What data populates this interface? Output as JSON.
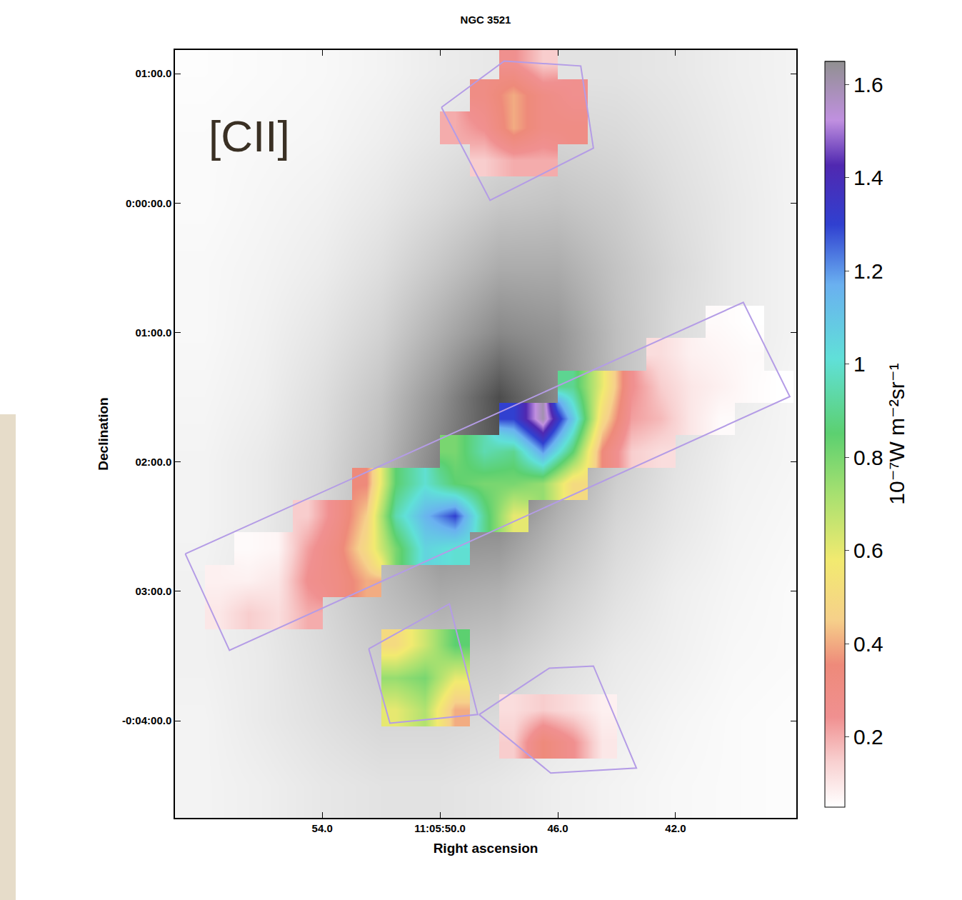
{
  "chart_data": {
    "type": "heatmap",
    "title": "NGC 3521",
    "x_label": "Right ascension",
    "y_label": "Declination",
    "xlim": [
      59.0,
      37.9
    ],
    "ylim": [
      -285,
      71
    ],
    "xticks": [
      {
        "value": 54,
        "label": "54.0"
      },
      {
        "value": 50,
        "label": "11:05:50.0"
      },
      {
        "value": 46,
        "label": "46.0"
      },
      {
        "value": 42,
        "label": "42.0"
      }
    ],
    "yticks": [
      {
        "value": 60,
        "label": "01:00.0"
      },
      {
        "value": 0,
        "label": "0:00:00.0"
      },
      {
        "value": -60,
        "label": "01:00.0"
      },
      {
        "value": -120,
        "label": "02:00.0"
      },
      {
        "value": -180,
        "label": "03:00.0"
      },
      {
        "value": -240,
        "label": "-0:04:00.0"
      }
    ],
    "grid": false,
    "annotations": [
      {
        "text": "[CII]"
      }
    ],
    "background": {
      "x": [
        58,
        56,
        54,
        52,
        50,
        48,
        46,
        44,
        42,
        40,
        38
      ],
      "y": [
        60,
        30,
        0,
        -30,
        -60,
        -90,
        -120,
        -150,
        -180,
        -210,
        -240,
        -270
      ],
      "zlim": [
        0,
        1
      ],
      "z": [
        [
          0.01,
          0.02,
          0.03,
          0.05,
          0.08,
          0.1,
          0.12,
          0.12,
          0.1,
          0.07,
          0.05
        ],
        [
          0.02,
          0.03,
          0.04,
          0.07,
          0.11,
          0.15,
          0.18,
          0.16,
          0.12,
          0.08,
          0.05
        ],
        [
          0.02,
          0.04,
          0.06,
          0.1,
          0.16,
          0.23,
          0.25,
          0.21,
          0.14,
          0.09,
          0.05
        ],
        [
          0.03,
          0.05,
          0.08,
          0.14,
          0.24,
          0.35,
          0.35,
          0.25,
          0.16,
          0.09,
          0.05
        ],
        [
          0.03,
          0.06,
          0.11,
          0.19,
          0.34,
          0.5,
          0.45,
          0.27,
          0.15,
          0.09,
          0.05
        ],
        [
          0.04,
          0.07,
          0.14,
          0.25,
          0.46,
          0.75,
          0.49,
          0.27,
          0.14,
          0.08,
          0.04
        ],
        [
          0.05,
          0.09,
          0.16,
          0.29,
          0.53,
          0.71,
          0.41,
          0.22,
          0.12,
          0.06,
          0.04
        ],
        [
          0.05,
          0.09,
          0.17,
          0.31,
          0.48,
          0.48,
          0.31,
          0.17,
          0.1,
          0.05,
          0.03
        ],
        [
          0.06,
          0.1,
          0.17,
          0.27,
          0.36,
          0.33,
          0.22,
          0.13,
          0.07,
          0.04,
          0.02
        ],
        [
          0.06,
          0.09,
          0.15,
          0.22,
          0.25,
          0.22,
          0.15,
          0.09,
          0.06,
          0.03,
          0.02
        ],
        [
          0.05,
          0.09,
          0.13,
          0.17,
          0.17,
          0.15,
          0.1,
          0.07,
          0.04,
          0.02,
          0.01
        ],
        [
          0.05,
          0.07,
          0.1,
          0.12,
          0.12,
          0.1,
          0.07,
          0.05,
          0.03,
          0.02,
          0.01
        ]
      ]
    },
    "cells": {
      "x": [
        58.5,
        57.5,
        56.5,
        55.5,
        54.5,
        53.5,
        52.5,
        51.5,
        50.5,
        49.5,
        48.5,
        47.5,
        46.5,
        45.5,
        44.5,
        43.5,
        42.5,
        41.5,
        40.5,
        39.5,
        38.5
      ],
      "y": [
        65,
        50,
        35,
        20,
        5,
        -10,
        -25,
        -40,
        -55,
        -70,
        -85,
        -100,
        -115,
        -130,
        -145,
        -160,
        -175,
        -190,
        -205,
        -220,
        -235,
        -250,
        -265,
        -280
      ],
      "z": [
        [
          null,
          null,
          null,
          null,
          null,
          null,
          null,
          null,
          null,
          null,
          null,
          0.25,
          0.15,
          null,
          null,
          null,
          null,
          null,
          null,
          null,
          null
        ],
        [
          null,
          null,
          null,
          null,
          null,
          null,
          null,
          null,
          null,
          null,
          0.3,
          0.4,
          0.3,
          0.25,
          null,
          null,
          null,
          null,
          null,
          null,
          null
        ],
        [
          null,
          null,
          null,
          null,
          null,
          null,
          null,
          null,
          null,
          0.2,
          0.25,
          0.4,
          0.3,
          0.3,
          null,
          null,
          null,
          null,
          null,
          null,
          null
        ],
        [
          null,
          null,
          null,
          null,
          null,
          null,
          null,
          null,
          null,
          null,
          0.15,
          0.2,
          0.2,
          null,
          null,
          null,
          null,
          null,
          null,
          null,
          null
        ],
        [
          null,
          null,
          null,
          null,
          null,
          null,
          null,
          null,
          null,
          null,
          null,
          null,
          null,
          null,
          null,
          null,
          null,
          null,
          null,
          null,
          null
        ],
        [
          null,
          null,
          null,
          null,
          null,
          null,
          null,
          null,
          null,
          null,
          null,
          null,
          null,
          null,
          null,
          null,
          null,
          null,
          null,
          null,
          null
        ],
        [
          null,
          null,
          null,
          null,
          null,
          null,
          null,
          null,
          null,
          null,
          null,
          null,
          null,
          null,
          null,
          null,
          null,
          null,
          null,
          null,
          null
        ],
        [
          null,
          null,
          null,
          null,
          null,
          null,
          null,
          null,
          null,
          null,
          null,
          null,
          null,
          null,
          null,
          null,
          null,
          null,
          null,
          null,
          null
        ],
        [
          null,
          null,
          null,
          null,
          null,
          null,
          null,
          null,
          null,
          null,
          null,
          null,
          null,
          null,
          null,
          null,
          null,
          null,
          0.06,
          0.05,
          null
        ],
        [
          null,
          null,
          null,
          null,
          null,
          null,
          null,
          null,
          null,
          null,
          null,
          null,
          null,
          null,
          null,
          null,
          0.12,
          0.08,
          0.07,
          0.06,
          null
        ],
        [
          null,
          null,
          null,
          null,
          null,
          null,
          null,
          null,
          null,
          null,
          null,
          null,
          null,
          0.9,
          0.6,
          0.25,
          0.15,
          0.1,
          0.08,
          0.06,
          0.05
        ],
        [
          null,
          null,
          null,
          null,
          null,
          null,
          null,
          null,
          null,
          null,
          null,
          1.3,
          1.6,
          1.1,
          0.5,
          0.22,
          0.18,
          0.1,
          0.06,
          null,
          null
        ],
        [
          null,
          null,
          null,
          null,
          null,
          null,
          null,
          null,
          null,
          0.8,
          0.95,
          0.9,
          1.2,
          0.85,
          0.35,
          0.15,
          0.12,
          null,
          null,
          null,
          null
        ],
        [
          null,
          null,
          null,
          null,
          null,
          null,
          0.35,
          0.85,
          1.0,
          0.85,
          0.8,
          0.8,
          0.75,
          0.5,
          null,
          null,
          null,
          null,
          null,
          null,
          null
        ],
        [
          null,
          null,
          null,
          null,
          0.15,
          0.28,
          0.45,
          0.95,
          1.15,
          1.3,
          0.9,
          0.6,
          null,
          null,
          null,
          null,
          null,
          null,
          null,
          null,
          null
        ],
        [
          null,
          null,
          0.06,
          0.07,
          0.22,
          0.32,
          0.5,
          0.8,
          1.05,
          1.0,
          null,
          null,
          null,
          null,
          null,
          null,
          null,
          null,
          null,
          null,
          null
        ],
        [
          null,
          0.08,
          0.08,
          0.1,
          0.25,
          0.3,
          0.4,
          null,
          null,
          null,
          null,
          null,
          null,
          null,
          null,
          null,
          null,
          null,
          null,
          null,
          null
        ],
        [
          null,
          0.1,
          0.15,
          0.12,
          0.2,
          null,
          null,
          null,
          null,
          null,
          null,
          null,
          null,
          null,
          null,
          null,
          null,
          null,
          null,
          null,
          null
        ],
        [
          null,
          null,
          null,
          null,
          null,
          null,
          null,
          0.5,
          0.65,
          0.85,
          null,
          null,
          null,
          null,
          null,
          null,
          null,
          null,
          null,
          null,
          null
        ],
        [
          null,
          null,
          null,
          null,
          null,
          null,
          null,
          0.75,
          0.8,
          0.6,
          null,
          null,
          null,
          null,
          null,
          null,
          null,
          null,
          null,
          null,
          null
        ],
        [
          null,
          null,
          null,
          null,
          null,
          null,
          null,
          0.6,
          0.7,
          0.4,
          null,
          0.12,
          0.15,
          0.12,
          0.08,
          null,
          null,
          null,
          null,
          null,
          null
        ],
        [
          null,
          null,
          null,
          null,
          null,
          null,
          null,
          null,
          null,
          null,
          null,
          0.15,
          0.35,
          0.25,
          0.1,
          null,
          null,
          null,
          null,
          null,
          null
        ],
        [
          null,
          null,
          null,
          null,
          null,
          null,
          null,
          null,
          null,
          null,
          null,
          null,
          null,
          null,
          null,
          null,
          null,
          null,
          null,
          null,
          null
        ],
        [
          null,
          null,
          null,
          null,
          null,
          null,
          null,
          null,
          null,
          null,
          null,
          null,
          null,
          null,
          null,
          null,
          null,
          null,
          null,
          null,
          null
        ]
      ]
    },
    "colorbar": {
      "title": "10⁻⁷W m⁻²sr⁻¹",
      "range": [
        0.05,
        1.65
      ],
      "ticks": [
        0.2,
        0.4,
        0.6,
        0.8,
        1.0,
        1.2,
        1.4,
        1.6
      ]
    },
    "footprints": [
      [
        [
          58.65,
          -162.6
        ],
        [
          39.7,
          -46.0
        ],
        [
          38.12,
          -89.7
        ],
        [
          57.15,
          -207.3
        ]
      ],
      [
        [
          49.95,
          44.4
        ],
        [
          47.82,
          65.9
        ],
        [
          45.22,
          63.6
        ],
        [
          44.79,
          25.5
        ],
        [
          48.3,
          1.3
        ]
      ],
      [
        [
          52.42,
          -206.6
        ],
        [
          49.68,
          -185.8
        ],
        [
          48.72,
          -237.1
        ],
        [
          51.7,
          -241.1
        ]
      ],
      [
        [
          48.67,
          -237.1
        ],
        [
          46.29,
          -215.6
        ],
        [
          44.79,
          -214.6
        ],
        [
          43.33,
          -261.9
        ],
        [
          46.24,
          -264.2
        ]
      ]
    ]
  }
}
